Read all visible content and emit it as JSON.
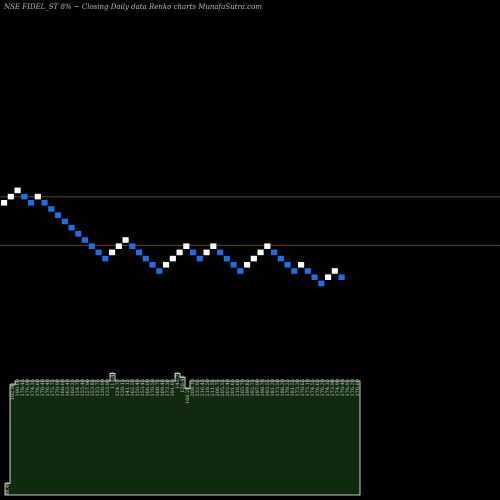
{
  "header": {
    "title": "NSE FIDEL_ST 8% ~ Closing Daily data  Renko  charts MunafaSutra.com"
  },
  "colors": {
    "background": "#000000",
    "brick_up": "#ffffff",
    "brick_down": "#1e6fe6",
    "reference_line": "#9a5a12",
    "volume_fill": "#0f2a0f",
    "volume_stroke": "#ffffff"
  },
  "chart_data": {
    "type": "renko",
    "bricks": [
      {
        "dir": "up",
        "row": 0
      },
      {
        "dir": "up",
        "row": 1
      },
      {
        "dir": "up",
        "row": 2
      },
      {
        "dir": "down",
        "row": 1
      },
      {
        "dir": "down",
        "row": 0
      },
      {
        "dir": "up",
        "row": 1
      },
      {
        "dir": "down",
        "row": 0
      },
      {
        "dir": "down",
        "row": -1
      },
      {
        "dir": "down",
        "row": -2
      },
      {
        "dir": "down",
        "row": -3
      },
      {
        "dir": "down",
        "row": -4
      },
      {
        "dir": "down",
        "row": -5
      },
      {
        "dir": "down",
        "row": -6
      },
      {
        "dir": "down",
        "row": -7
      },
      {
        "dir": "down",
        "row": -8
      },
      {
        "dir": "down",
        "row": -9
      },
      {
        "dir": "up",
        "row": -8
      },
      {
        "dir": "up",
        "row": -7
      },
      {
        "dir": "up",
        "row": -6
      },
      {
        "dir": "down",
        "row": -7
      },
      {
        "dir": "down",
        "row": -8
      },
      {
        "dir": "down",
        "row": -9
      },
      {
        "dir": "down",
        "row": -10
      },
      {
        "dir": "down",
        "row": -11
      },
      {
        "dir": "up",
        "row": -10
      },
      {
        "dir": "up",
        "row": -9
      },
      {
        "dir": "up",
        "row": -8
      },
      {
        "dir": "up",
        "row": -7
      },
      {
        "dir": "down",
        "row": -8
      },
      {
        "dir": "down",
        "row": -9
      },
      {
        "dir": "up",
        "row": -8
      },
      {
        "dir": "up",
        "row": -7
      },
      {
        "dir": "down",
        "row": -8
      },
      {
        "dir": "down",
        "row": -9
      },
      {
        "dir": "down",
        "row": -10
      },
      {
        "dir": "down",
        "row": -11
      },
      {
        "dir": "up",
        "row": -10
      },
      {
        "dir": "up",
        "row": -9
      },
      {
        "dir": "up",
        "row": -8
      },
      {
        "dir": "up",
        "row": -7
      },
      {
        "dir": "down",
        "row": -8
      },
      {
        "dir": "down",
        "row": -9
      },
      {
        "dir": "down",
        "row": -10
      },
      {
        "dir": "down",
        "row": -11
      },
      {
        "dir": "up",
        "row": -10
      },
      {
        "dir": "down",
        "row": -11
      },
      {
        "dir": "down",
        "row": -12
      },
      {
        "dir": "down",
        "row": -13
      },
      {
        "dir": "up",
        "row": -12
      },
      {
        "dir": "up",
        "row": -11
      },
      {
        "dir": "down",
        "row": -12
      }
    ],
    "reference_lines": [
      1.0,
      -6.8
    ],
    "volume_levels": [
      0.06,
      0.58,
      0.6,
      0.6,
      0.6,
      0.6,
      0.6,
      0.6,
      0.6,
      0.6,
      0.6,
      0.6,
      0.6,
      0.6,
      0.6,
      0.6,
      0.6,
      0.6,
      0.6,
      0.6,
      0.6,
      0.64,
      0.6,
      0.6,
      0.6,
      0.6,
      0.6,
      0.6,
      0.6,
      0.6,
      0.6,
      0.6,
      0.6,
      0.6,
      0.64,
      0.62,
      0.56,
      0.6,
      0.6,
      0.6,
      0.6,
      0.6,
      0.6,
      0.6,
      0.6,
      0.6,
      0.6,
      0.6,
      0.6,
      0.6,
      0.6,
      0.6,
      0.6,
      0.6,
      0.6,
      0.6,
      0.6,
      0.6,
      0.6,
      0.6,
      0.6,
      0.6,
      0.6,
      0.6,
      0.6,
      0.6,
      0.6,
      0.6,
      0.6,
      0.6,
      0.6
    ],
    "volume_labels": [
      {
        "index": 0,
        "text": "88.40"
      },
      {
        "index": 1,
        "text": "192.90"
      },
      {
        "index": 2,
        "text": "190.60"
      },
      {
        "index": 3,
        "text": "178.45"
      },
      {
        "index": 4,
        "text": "176.00"
      },
      {
        "index": 5,
        "text": "174.35"
      },
      {
        "index": 6,
        "text": "176.60"
      },
      {
        "index": 7,
        "text": "178.40"
      },
      {
        "index": 8,
        "text": "176.40"
      },
      {
        "index": 9,
        "text": "172.75"
      },
      {
        "index": 10,
        "text": "170.90"
      },
      {
        "index": 11,
        "text": "168.60"
      },
      {
        "index": 12,
        "text": "163.40"
      },
      {
        "index": 13,
        "text": "160.35"
      },
      {
        "index": 14,
        "text": "154.70"
      },
      {
        "index": 15,
        "text": "155.40"
      },
      {
        "index": 16,
        "text": "157.90"
      },
      {
        "index": 17,
        "text": "153.85"
      },
      {
        "index": 18,
        "text": "133.75"
      },
      {
        "index": 19,
        "text": "120.90"
      },
      {
        "index": 20,
        "text": "123.90"
      },
      {
        "index": 21,
        "text": "113.45"
      },
      {
        "index": 22,
        "text": "124.75"
      },
      {
        "index": 23,
        "text": "129.15"
      },
      {
        "index": 24,
        "text": "141.15"
      },
      {
        "index": 25,
        "text": "162.50"
      },
      {
        "index": 26,
        "text": "150.40"
      },
      {
        "index": 27,
        "text": "153.45"
      },
      {
        "index": 28,
        "text": "166.00"
      },
      {
        "index": 29,
        "text": "170.50"
      },
      {
        "index": 30,
        "text": "168.75"
      },
      {
        "index": 31,
        "text": "169.40"
      },
      {
        "index": 32,
        "text": "173.30"
      },
      {
        "index": 33,
        "text": "191.60"
      },
      {
        "index": 34,
        "text": "143.75"
      },
      {
        "index": 35,
        "text": "150.45"
      },
      {
        "index": 36,
        "text": "166.20"
      },
      {
        "index": 37,
        "text": "208.10"
      },
      {
        "index": 38,
        "text": "232.95"
      },
      {
        "index": 39,
        "text": "216.45"
      },
      {
        "index": 40,
        "text": "218.50"
      },
      {
        "index": 41,
        "text": "211.55"
      },
      {
        "index": 42,
        "text": "206.75"
      },
      {
        "index": 43,
        "text": "205.55"
      },
      {
        "index": 44,
        "text": "202.40"
      },
      {
        "index": 45,
        "text": "201.65"
      },
      {
        "index": 46,
        "text": "216.60"
      },
      {
        "index": 47,
        "text": "205.70"
      },
      {
        "index": 48,
        "text": "199.85"
      },
      {
        "index": 49,
        "text": "192.75"
      },
      {
        "index": 50,
        "text": "197.90"
      },
      {
        "index": 51,
        "text": "198.70"
      },
      {
        "index": 52,
        "text": "193.55"
      },
      {
        "index": 53,
        "text": "181.20"
      },
      {
        "index": 54,
        "text": "173.50"
      },
      {
        "index": 55,
        "text": "186.20"
      },
      {
        "index": 56,
        "text": "178.25"
      },
      {
        "index": 57,
        "text": "181.55"
      },
      {
        "index": 58,
        "text": "173.20"
      },
      {
        "index": 59,
        "text": "170.65"
      },
      {
        "index": 60,
        "text": "175.10"
      },
      {
        "index": 61,
        "text": "174.55"
      },
      {
        "index": 62,
        "text": "176.65"
      },
      {
        "index": 63,
        "text": "176.20"
      },
      {
        "index": 64,
        "text": "174.35"
      },
      {
        "index": 65,
        "text": "173.90"
      },
      {
        "index": 66,
        "text": "174.90"
      },
      {
        "index": 67,
        "text": "170.40"
      },
      {
        "index": 68,
        "text": "176.95"
      },
      {
        "index": 69,
        "text": "176.20"
      },
      {
        "index": 70,
        "text": "176.00"
      }
    ]
  }
}
